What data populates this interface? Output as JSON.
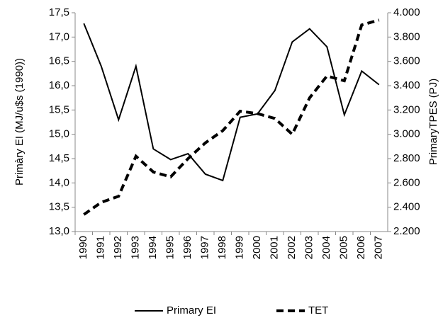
{
  "chart_data": {
    "type": "line",
    "categories": [
      "1990",
      "1991",
      "1992",
      "1993",
      "1994",
      "1995",
      "1996",
      "1997",
      "1998",
      "1999",
      "2000",
      "2001",
      "2002",
      "2003",
      "2004",
      "2005",
      "2006",
      "2007"
    ],
    "ylabel": "Primàry EI  (MJ/u$s (1990))",
    "y2label": "PrimaryTPES (PJ)",
    "ylim": [
      13,
      17.5
    ],
    "yticks": [
      {
        "value": 13,
        "label": "13,0"
      },
      {
        "value": 13.5,
        "label": "13,5"
      },
      {
        "value": 14,
        "label": "14,0"
      },
      {
        "value": 14.5,
        "label": "14,5"
      },
      {
        "value": 15,
        "label": "15,0"
      },
      {
        "value": 15.5,
        "label": "15,5"
      },
      {
        "value": 16,
        "label": "16,0"
      },
      {
        "value": 16.5,
        "label": "16,5"
      },
      {
        "value": 17,
        "label": "17,0"
      },
      {
        "value": 17.5,
        "label": "17,5"
      }
    ],
    "y2lim": [
      2200,
      4000
    ],
    "y2ticks": [
      {
        "value": 2200,
        "label": "2.200"
      },
      {
        "value": 2400,
        "label": "2.400"
      },
      {
        "value": 2600,
        "label": "2.600"
      },
      {
        "value": 2800,
        "label": "2.800"
      },
      {
        "value": 3000,
        "label": "3.000"
      },
      {
        "value": 3200,
        "label": "3.200"
      },
      {
        "value": 3400,
        "label": "3.400"
      },
      {
        "value": 3600,
        "label": "3.600"
      },
      {
        "value": 3800,
        "label": "3.800"
      },
      {
        "value": 4000,
        "label": "4.000"
      }
    ],
    "legend": "bottom",
    "series": [
      {
        "name": "Primary EI",
        "color": "#000000",
        "dash": "solid",
        "values": [
          17.28,
          16.4,
          15.3,
          16.4,
          14.7,
          14.48,
          14.6,
          14.18,
          14.05,
          15.35,
          15.42,
          15.9,
          16.9,
          17.17,
          16.8,
          15.4,
          16.3,
          16.02
        ]
      },
      {
        "name": "TET",
        "color": "#000000",
        "dash": "dashed",
        "axis": "y2",
        "values": [
          2340,
          2440,
          2490,
          2820,
          2690,
          2650,
          2800,
          2930,
          3030,
          3190,
          3170,
          3130,
          3000,
          3300,
          3480,
          3440,
          3900,
          3940
        ]
      }
    ]
  }
}
